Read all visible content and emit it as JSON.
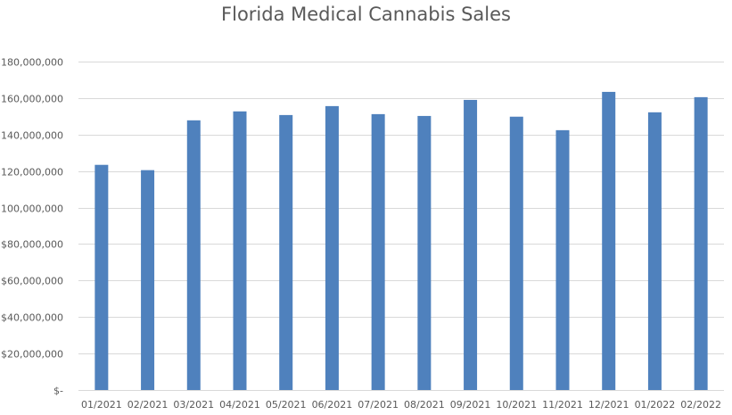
{
  "chart_data": {
    "type": "bar",
    "title": "Florida Medical Cannabis Sales",
    "xlabel": "",
    "ylabel": "",
    "categories": [
      "01/2021",
      "02/2021",
      "03/2021",
      "04/2021",
      "05/2021",
      "06/2021",
      "07/2021",
      "08/2021",
      "09/2021",
      "10/2021",
      "11/2021",
      "12/2021",
      "01/2022",
      "02/2022"
    ],
    "values": [
      123400000,
      120500000,
      147800000,
      152700000,
      150700000,
      155600000,
      151200000,
      150200000,
      159000000,
      149800000,
      142400000,
      163400000,
      152200000,
      160500000
    ],
    "ylim": [
      0,
      180000000
    ],
    "yticks": [
      0,
      20000000,
      40000000,
      60000000,
      80000000,
      100000000,
      120000000,
      140000000,
      160000000,
      180000000
    ],
    "ytick_labels": [
      "$-",
      "$20,000,000",
      "$40,000,000",
      "$60,000,000",
      "$80,000,000",
      "$100,000,000",
      "$120,000,000",
      "$140,000,000",
      "$160,000,000",
      "$180,000,000"
    ],
    "grid": true,
    "legend": "none",
    "bar_color": "#4f81bd",
    "grid_color": "#d9d9d9"
  }
}
